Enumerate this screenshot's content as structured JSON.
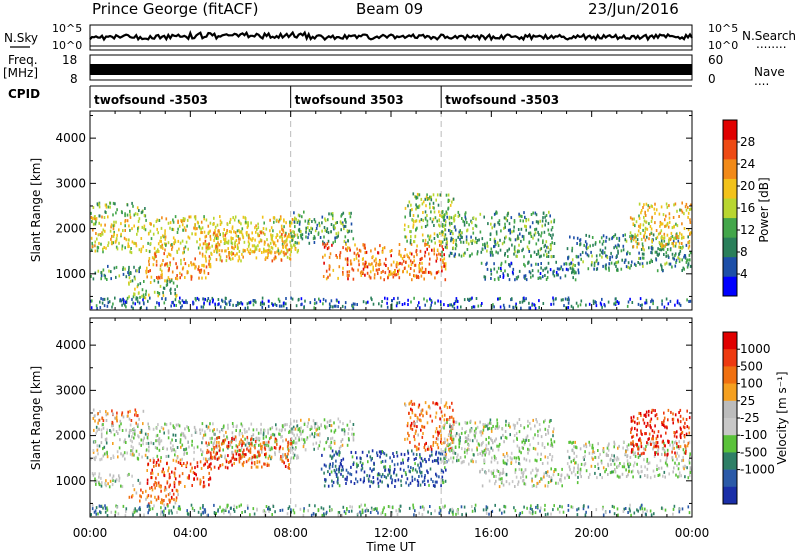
{
  "header": {
    "radar": "Prince George (fitACF)",
    "beam": "Beam 09",
    "date": "23/Jun/2016"
  },
  "left_labels": {
    "nsky": "N.Sky",
    "freq": "Freq.",
    "freq_unit": "[MHz]",
    "cpid": "CPID"
  },
  "right_labels": {
    "nsearch": "N.Search",
    "nsearch_dots": "........",
    "nave": "Nave",
    "nave_dots": "...."
  },
  "noise_axis": {
    "left_ticks": [
      "10^5",
      "10^0"
    ],
    "right_ticks": [
      "10^5",
      "10^0"
    ]
  },
  "freq_axis": {
    "left_ticks": [
      "18",
      "8"
    ],
    "right_ticks": [
      "60",
      "0"
    ]
  },
  "cpid_segments": [
    {
      "label": "twofsound -3503",
      "start_hour": 0
    },
    {
      "label": "twofsound 3503",
      "start_hour": 8
    },
    {
      "label": "twofsound -3503",
      "start_hour": 14
    }
  ],
  "colors": {
    "power_scale": [
      "#0000ff",
      "#1d4fa8",
      "#2a7f5a",
      "#43a64a",
      "#b8d630",
      "#f2c21a",
      "#f28a18",
      "#ee4a14",
      "#e00000"
    ],
    "velocity_scale": [
      "#1a2fa8",
      "#2b5aa8",
      "#2e7f66",
      "#5ac23a",
      "#c8c8c8",
      "#bcbcbc",
      "#f5a020",
      "#f07010",
      "#ee3a10",
      "#e00000"
    ]
  },
  "chart_data": [
    {
      "type": "heatmap",
      "title": "Power",
      "xlabel": "Time UT",
      "ylabel": "Slant Range [km]",
      "x_ticks": [
        "00:00",
        "04:00",
        "08:00",
        "12:00",
        "16:00",
        "20:00",
        "00:00"
      ],
      "xlim_hours": [
        0,
        24
      ],
      "ylim": [
        200,
        4600
      ],
      "y_ticks": [
        1000,
        2000,
        3000,
        4000
      ],
      "colorbar": {
        "label": "Power [dB]",
        "ticks": [
          4,
          8,
          12,
          16,
          20,
          24,
          28
        ],
        "range": [
          0,
          32
        ]
      },
      "scatter_bands": [
        {
          "t0": 0,
          "t1": 8.3,
          "r0": 1500,
          "r1": 2300,
          "level": 0.55
        },
        {
          "t0": 0,
          "t1": 2.2,
          "r0": 2300,
          "r1": 2600,
          "level": 0.4
        },
        {
          "t0": 2.2,
          "t1": 4.8,
          "r0": 900,
          "r1": 1500,
          "level": 0.7
        },
        {
          "t0": 0,
          "t1": 2.0,
          "r0": 900,
          "r1": 1200,
          "level": 0.3
        },
        {
          "t0": 1.5,
          "t1": 3.5,
          "r0": 500,
          "r1": 900,
          "level": 0.45
        },
        {
          "t0": 4.5,
          "t1": 8.0,
          "r0": 1300,
          "r1": 2000,
          "level": 0.65
        },
        {
          "t0": 8.0,
          "t1": 10.5,
          "r0": 1700,
          "r1": 2400,
          "level": 0.35
        },
        {
          "t0": 9.2,
          "t1": 14.2,
          "r0": 900,
          "r1": 1700,
          "level": 0.75
        },
        {
          "t0": 12.5,
          "t1": 14.5,
          "r0": 1700,
          "r1": 2800,
          "level": 0.45
        },
        {
          "t0": 14.0,
          "t1": 18.5,
          "r0": 1400,
          "r1": 2400,
          "level": 0.35
        },
        {
          "t0": 15.5,
          "t1": 19.5,
          "r0": 900,
          "r1": 1300,
          "level": 0.25
        },
        {
          "t0": 19.0,
          "t1": 24.0,
          "r0": 1100,
          "r1": 1900,
          "level": 0.3
        },
        {
          "t0": 21.5,
          "t1": 24.0,
          "r0": 1600,
          "r1": 2600,
          "level": 0.6
        },
        {
          "t0": 0,
          "t1": 24,
          "r0": 250,
          "r1": 500,
          "level": 0.2
        }
      ]
    },
    {
      "type": "heatmap",
      "title": "Velocity",
      "xlabel": "Time UT",
      "ylabel": "Slant Range [km]",
      "x_ticks": [
        "00:00",
        "04:00",
        "08:00",
        "12:00",
        "16:00",
        "20:00",
        "00:00"
      ],
      "xlim_hours": [
        0,
        24
      ],
      "ylim": [
        200,
        4600
      ],
      "y_ticks": [
        1000,
        2000,
        3000,
        4000
      ],
      "colorbar": {
        "label": "Velocity [m s⁻¹]",
        "ticks": [
          "1000",
          "500",
          "100",
          "25",
          "-25",
          "-100",
          "-500",
          "-1000"
        ]
      },
      "scatter_bands": [
        {
          "t0": 0,
          "t1": 8.3,
          "r0": 1500,
          "r1": 2300,
          "level": 0.45
        },
        {
          "t0": 0,
          "t1": 2.2,
          "r0": 2300,
          "r1": 2600,
          "level": 0.7
        },
        {
          "t0": 2.2,
          "t1": 4.8,
          "r0": 900,
          "r1": 1500,
          "level": 0.8
        },
        {
          "t0": 0,
          "t1": 2.0,
          "r0": 900,
          "r1": 1200,
          "level": 0.45
        },
        {
          "t0": 1.5,
          "t1": 3.5,
          "r0": 500,
          "r1": 900,
          "level": 0.75
        },
        {
          "t0": 4.5,
          "t1": 8.0,
          "r0": 1300,
          "r1": 2000,
          "level": 0.8
        },
        {
          "t0": 8.0,
          "t1": 10.5,
          "r0": 1700,
          "r1": 2400,
          "level": 0.45
        },
        {
          "t0": 9.2,
          "t1": 14.2,
          "r0": 900,
          "r1": 1700,
          "level": 0.15
        },
        {
          "t0": 12.5,
          "t1": 14.5,
          "r0": 1700,
          "r1": 2800,
          "level": 0.75
        },
        {
          "t0": 14.0,
          "t1": 18.5,
          "r0": 1400,
          "r1": 2400,
          "level": 0.45
        },
        {
          "t0": 15.5,
          "t1": 19.5,
          "r0": 900,
          "r1": 1300,
          "level": 0.45
        },
        {
          "t0": 19.0,
          "t1": 24.0,
          "r0": 1100,
          "r1": 1900,
          "level": 0.45
        },
        {
          "t0": 21.5,
          "t1": 24.0,
          "r0": 1600,
          "r1": 2600,
          "level": 0.9
        },
        {
          "t0": 0,
          "t1": 24,
          "r0": 250,
          "r1": 500,
          "level": 0.3
        }
      ]
    }
  ]
}
